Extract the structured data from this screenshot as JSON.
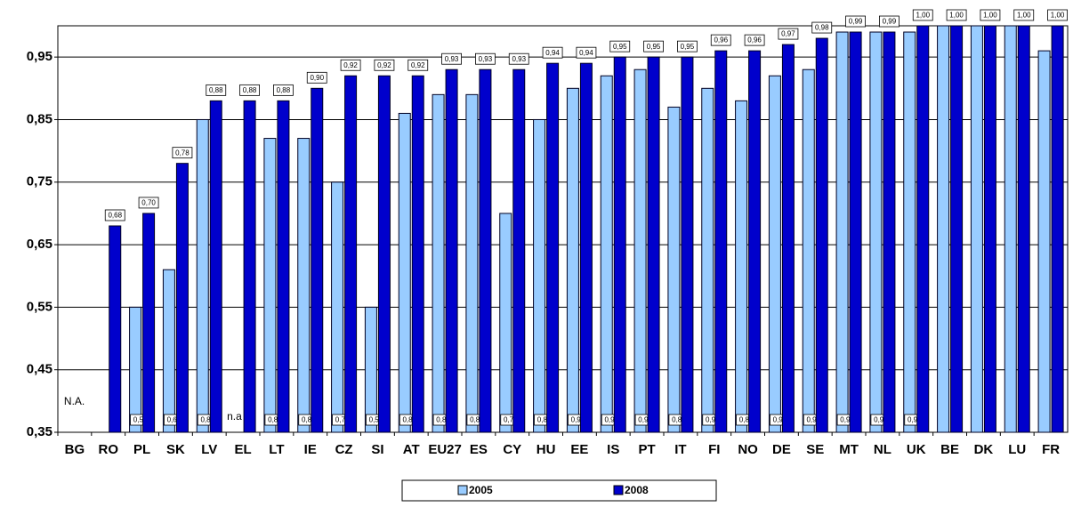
{
  "chart_data": {
    "type": "bar",
    "categories": [
      "BG",
      "RO",
      "PL",
      "SK",
      "LV",
      "EL",
      "LT",
      "IE",
      "CZ",
      "SI",
      "AT",
      "EU27",
      "ES",
      "CY",
      "HU",
      "EE",
      "IS",
      "PT",
      "IT",
      "FI",
      "NO",
      "DE",
      "SE",
      "MT",
      "NL",
      "UK",
      "BE",
      "DK",
      "LU",
      "FR"
    ],
    "series": [
      {
        "name": "2005",
        "color": "#99ccff",
        "values": [
          null,
          null,
          0.55,
          0.61,
          0.85,
          null,
          0.82,
          0.82,
          0.75,
          0.55,
          0.86,
          0.89,
          0.89,
          0.7,
          0.85,
          0.9,
          0.92,
          0.93,
          0.87,
          0.9,
          0.88,
          0.92,
          0.93,
          0.99,
          0.99,
          0.99,
          1.0,
          1.0,
          1.0,
          0.96
        ],
        "value_labels": [
          null,
          null,
          "0,55",
          "0,61",
          "0,85",
          null,
          "0,82",
          "0,82",
          "0,75",
          "0,55",
          "0,86",
          "0,89",
          "0,89",
          "0,70",
          "0,85",
          "0,90",
          "0,92",
          "0,93",
          "0,87",
          "0,90",
          "0,88",
          "0,92",
          "0,93",
          "0,99",
          "0,99",
          "0,99",
          null,
          null,
          null,
          null
        ]
      },
      {
        "name": "2008",
        "color": "#0000cc",
        "values": [
          null,
          0.68,
          0.7,
          0.78,
          0.88,
          0.88,
          0.88,
          0.9,
          0.92,
          0.92,
          0.92,
          0.93,
          0.93,
          0.93,
          0.94,
          0.94,
          0.95,
          0.95,
          0.95,
          0.96,
          0.96,
          0.97,
          0.98,
          0.99,
          0.99,
          1.0,
          1.0,
          1.0,
          1.0,
          1.0
        ],
        "value_labels": [
          null,
          "0,68",
          "0,70",
          "0,78",
          "0,88",
          "0,88",
          "0,88",
          "0,90",
          "0,92",
          "0,92",
          "0,92",
          "0,93",
          "0,93",
          "0,93",
          "0,94",
          "0,94",
          "0,95",
          "0,95",
          "0,95",
          "0,96",
          "0,96",
          "0,97",
          "0,98",
          "0,99",
          "0,99",
          "1,00",
          "1,00",
          "1,00",
          "1,00",
          "1,00"
        ]
      }
    ],
    "annotations": [
      {
        "category": "BG",
        "text": "N.A."
      },
      {
        "category": "EL",
        "text": "n.a"
      }
    ],
    "ylim": [
      0.35,
      1.0
    ],
    "yticks": [
      {
        "value": 0.35,
        "label": "0,35"
      },
      {
        "value": 0.45,
        "label": "0,45"
      },
      {
        "value": 0.55,
        "label": "0,55"
      },
      {
        "value": 0.65,
        "label": "0,65"
      },
      {
        "value": 0.75,
        "label": "0,75"
      },
      {
        "value": 0.85,
        "label": "0,85"
      },
      {
        "value": 0.95,
        "label": "0,95"
      }
    ],
    "grid": true,
    "legend": "bottom"
  }
}
